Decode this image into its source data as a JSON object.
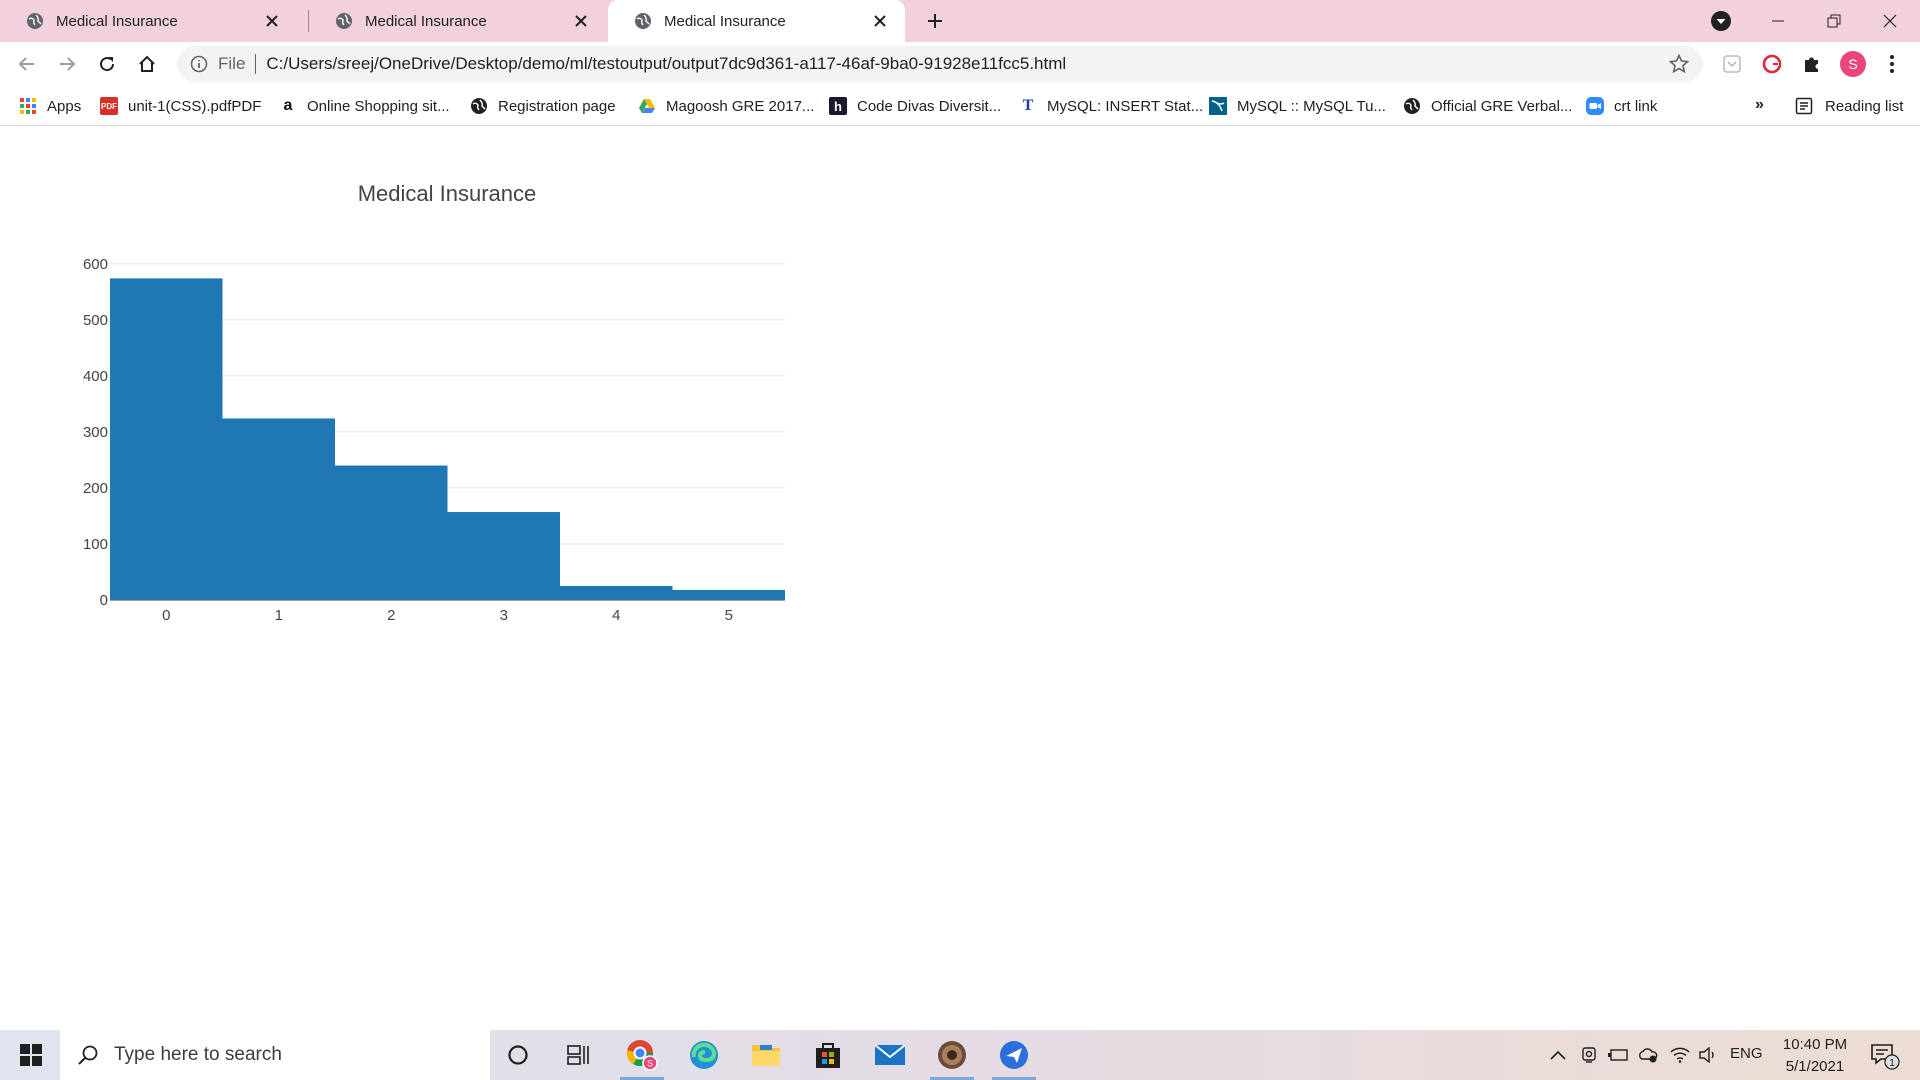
{
  "browser": {
    "tabs": [
      {
        "title": "Medical Insurance",
        "active": false
      },
      {
        "title": "Medical Insurance",
        "active": false
      },
      {
        "title": "Medical Insurance",
        "active": true
      }
    ],
    "address": {
      "scheme": "File",
      "url": "C:/Users/sreej/OneDrive/Desktop/demo/ml/testoutput/output7dc9d361-a117-46af-9ba0-91928e11fcc5.html"
    },
    "profile_initial": "S",
    "bookmarks": [
      {
        "label": "Apps",
        "icon": "apps-grid-icon"
      },
      {
        "label": "unit-1(CSS).pdfPDF",
        "icon": "pdf-icon"
      },
      {
        "label": "Online Shopping sit...",
        "icon": "amazon-icon"
      },
      {
        "label": "Registration page",
        "icon": "globe-icon"
      },
      {
        "label": "Magoosh GRE 2017...",
        "icon": "google-drive-icon"
      },
      {
        "label": "Code Divas Diversit...",
        "icon": "h-logo-icon"
      },
      {
        "label": "MySQL: INSERT Stat...",
        "icon": "t-logo-icon"
      },
      {
        "label": "MySQL :: MySQL Tu...",
        "icon": "mysql-icon"
      },
      {
        "label": "Official GRE Verbal...",
        "icon": "globe-icon"
      },
      {
        "label": "crt link",
        "icon": "zoom-icon"
      }
    ],
    "bookmarks_overflow": "»",
    "reading_list": "Reading list"
  },
  "chart_data": {
    "type": "bar",
    "title": "Medical Insurance",
    "categories": [
      "0",
      "1",
      "2",
      "3",
      "4",
      "5"
    ],
    "values": [
      574,
      324,
      240,
      157,
      25,
      18
    ],
    "ylim": [
      0,
      630
    ],
    "yticks": [
      0,
      100,
      200,
      300,
      400,
      500,
      600
    ],
    "grid": true,
    "bar_color": "#1f77b4",
    "xlabel": "",
    "ylabel": ""
  },
  "taskbar": {
    "search_placeholder": "Type here to search",
    "language": "ENG",
    "time": "10:40 PM",
    "date": "5/1/2021",
    "notification_count": "1"
  }
}
